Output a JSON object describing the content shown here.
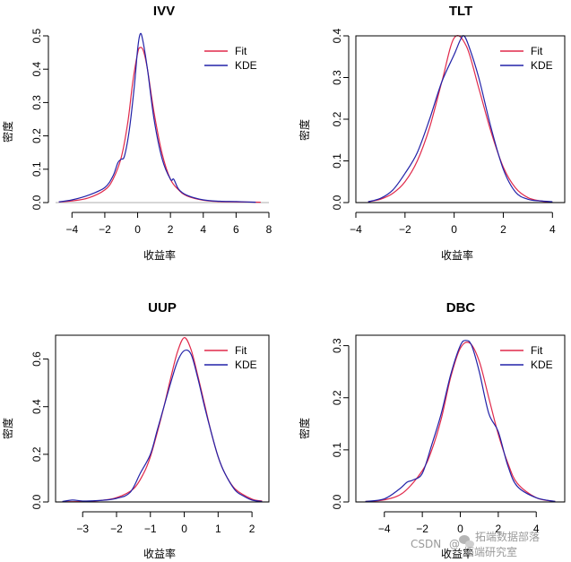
{
  "colors": {
    "fit": "#e0284a",
    "kde": "#2222a8",
    "baseline": "#bdbdbd",
    "axis": "#000000"
  },
  "watermark": {
    "csdn": "CSDN",
    "at": "@",
    "org": "拓端数据部落",
    "org2": "拓端研究室",
    "icon": "wechat-logo"
  },
  "chart_data": [
    {
      "type": "line",
      "title": "IVV",
      "xlabel": "收益率",
      "ylabel": "密度",
      "xlim": [
        -5,
        8
      ],
      "ylim": [
        0,
        0.5
      ],
      "xticks": [
        -4,
        -2,
        0,
        2,
        4,
        6,
        8
      ],
      "yticks": [
        0.0,
        0.1,
        0.2,
        0.3,
        0.4,
        0.5
      ],
      "legend": {
        "position": "top-right",
        "entries": [
          "Fit",
          "KDE"
        ]
      },
      "series": [
        {
          "name": "Fit",
          "color_key": "fit",
          "x": [
            -4.8,
            -4.0,
            -3.0,
            -2.0,
            -1.5,
            -1.0,
            -0.6,
            -0.3,
            0.0,
            0.15,
            0.35,
            0.6,
            1.0,
            1.5,
            2.0,
            2.5,
            3.0,
            4.0,
            5.0,
            6.0,
            7.5
          ],
          "y": [
            0.002,
            0.005,
            0.014,
            0.038,
            0.07,
            0.135,
            0.24,
            0.36,
            0.448,
            0.465,
            0.455,
            0.4,
            0.27,
            0.145,
            0.07,
            0.038,
            0.02,
            0.007,
            0.003,
            0.002,
            0.001
          ]
        },
        {
          "name": "KDE",
          "color_key": "kde",
          "x": [
            -4.8,
            -4.0,
            -3.0,
            -2.0,
            -1.5,
            -1.2,
            -1.0,
            -0.8,
            -0.5,
            -0.2,
            0.0,
            0.15,
            0.3,
            0.6,
            1.0,
            1.5,
            2.0,
            2.2,
            2.5,
            3.0,
            4.0,
            5.0,
            6.0,
            7.2
          ],
          "y": [
            0.002,
            0.008,
            0.022,
            0.045,
            0.08,
            0.12,
            0.13,
            0.14,
            0.22,
            0.35,
            0.46,
            0.505,
            0.49,
            0.4,
            0.25,
            0.13,
            0.07,
            0.07,
            0.04,
            0.022,
            0.008,
            0.004,
            0.003,
            0.001
          ]
        }
      ]
    },
    {
      "type": "line",
      "title": "TLT",
      "xlabel": "收益率",
      "ylabel": "密度",
      "xlim": [
        -4,
        4.5
      ],
      "ylim": [
        0,
        0.4
      ],
      "xticks": [
        -4,
        -2,
        0,
        2,
        4
      ],
      "yticks": [
        0.0,
        0.1,
        0.2,
        0.3,
        0.4
      ],
      "legend": {
        "position": "top-right",
        "entries": [
          "Fit",
          "KDE"
        ]
      },
      "series": [
        {
          "name": "Fit",
          "color_key": "fit",
          "x": [
            -3.5,
            -3.0,
            -2.5,
            -2.0,
            -1.5,
            -1.0,
            -0.5,
            0.0,
            0.5,
            1.0,
            1.5,
            2.0,
            2.5,
            3.0,
            3.5,
            4.0
          ],
          "y": [
            0.002,
            0.008,
            0.022,
            0.05,
            0.1,
            0.18,
            0.29,
            0.395,
            0.375,
            0.275,
            0.17,
            0.085,
            0.035,
            0.012,
            0.004,
            0.001
          ]
        },
        {
          "name": "KDE",
          "color_key": "kde",
          "x": [
            -3.5,
            -3.0,
            -2.5,
            -2.0,
            -1.5,
            -1.0,
            -0.5,
            0.0,
            0.25,
            0.4,
            0.6,
            1.0,
            1.5,
            2.0,
            2.5,
            3.0,
            3.5,
            4.0
          ],
          "y": [
            0.002,
            0.01,
            0.03,
            0.07,
            0.12,
            0.2,
            0.29,
            0.355,
            0.39,
            0.4,
            0.375,
            0.3,
            0.18,
            0.08,
            0.025,
            0.008,
            0.004,
            0.002
          ]
        }
      ]
    },
    {
      "type": "line",
      "title": "UUP",
      "xlabel": "收益率",
      "ylabel": "密度",
      "xlim": [
        -3.8,
        2.5
      ],
      "ylim": [
        0,
        0.7
      ],
      "xticks": [
        -3,
        -2,
        -1,
        0,
        1,
        2
      ],
      "yticks": [
        0.0,
        0.2,
        0.4,
        0.6
      ],
      "legend": {
        "position": "top-right",
        "entries": [
          "Fit",
          "KDE"
        ]
      },
      "series": [
        {
          "name": "Fit",
          "color_key": "fit",
          "x": [
            -3.6,
            -3.0,
            -2.5,
            -2.0,
            -1.5,
            -1.2,
            -1.0,
            -0.8,
            -0.6,
            -0.4,
            -0.2,
            0.0,
            0.2,
            0.4,
            0.6,
            0.8,
            1.0,
            1.2,
            1.5,
            2.0,
            2.3
          ],
          "y": [
            0.001,
            0.002,
            0.006,
            0.018,
            0.055,
            0.12,
            0.19,
            0.29,
            0.4,
            0.52,
            0.63,
            0.69,
            0.64,
            0.53,
            0.41,
            0.29,
            0.19,
            0.12,
            0.055,
            0.012,
            0.004
          ]
        },
        {
          "name": "KDE",
          "color_key": "kde",
          "x": [
            -3.6,
            -3.3,
            -3.0,
            -2.5,
            -2.0,
            -1.6,
            -1.3,
            -1.0,
            -0.8,
            -0.6,
            -0.4,
            -0.2,
            0.0,
            0.2,
            0.4,
            0.6,
            0.8,
            1.0,
            1.2,
            1.5,
            1.75,
            2.0,
            2.3
          ],
          "y": [
            0.002,
            0.008,
            0.004,
            0.006,
            0.015,
            0.04,
            0.12,
            0.2,
            0.3,
            0.4,
            0.5,
            0.59,
            0.635,
            0.62,
            0.52,
            0.4,
            0.29,
            0.19,
            0.12,
            0.05,
            0.025,
            0.008,
            0.002
          ]
        }
      ]
    },
    {
      "type": "line",
      "title": "DBC",
      "xlabel": "收益率",
      "ylabel": "密度",
      "xlim": [
        -5.5,
        5.5
      ],
      "ylim": [
        0,
        0.32
      ],
      "xticks": [
        -4,
        -2,
        0,
        2,
        4
      ],
      "yticks": [
        0.0,
        0.1,
        0.2,
        0.3
      ],
      "legend": {
        "position": "top-right",
        "entries": [
          "Fit",
          "KDE"
        ]
      },
      "series": [
        {
          "name": "Fit",
          "color_key": "fit",
          "x": [
            -5.0,
            -4.0,
            -3.0,
            -2.0,
            -1.5,
            -1.0,
            -0.5,
            0.0,
            0.5,
            1.0,
            1.5,
            2.0,
            2.5,
            3.0,
            4.0,
            5.0
          ],
          "y": [
            0.001,
            0.004,
            0.018,
            0.06,
            0.1,
            0.16,
            0.24,
            0.295,
            0.305,
            0.27,
            0.2,
            0.13,
            0.075,
            0.036,
            0.008,
            0.001
          ]
        },
        {
          "name": "KDE",
          "color_key": "kde",
          "x": [
            -5.0,
            -4.0,
            -3.2,
            -2.8,
            -2.5,
            -2.0,
            -1.5,
            -1.0,
            -0.5,
            0.0,
            0.3,
            0.6,
            1.0,
            1.5,
            2.0,
            2.5,
            3.0,
            4.0,
            5.0
          ],
          "y": [
            0.001,
            0.006,
            0.025,
            0.038,
            0.042,
            0.055,
            0.11,
            0.17,
            0.245,
            0.3,
            0.31,
            0.3,
            0.25,
            0.17,
            0.135,
            0.07,
            0.03,
            0.008,
            0.001
          ]
        }
      ]
    }
  ]
}
